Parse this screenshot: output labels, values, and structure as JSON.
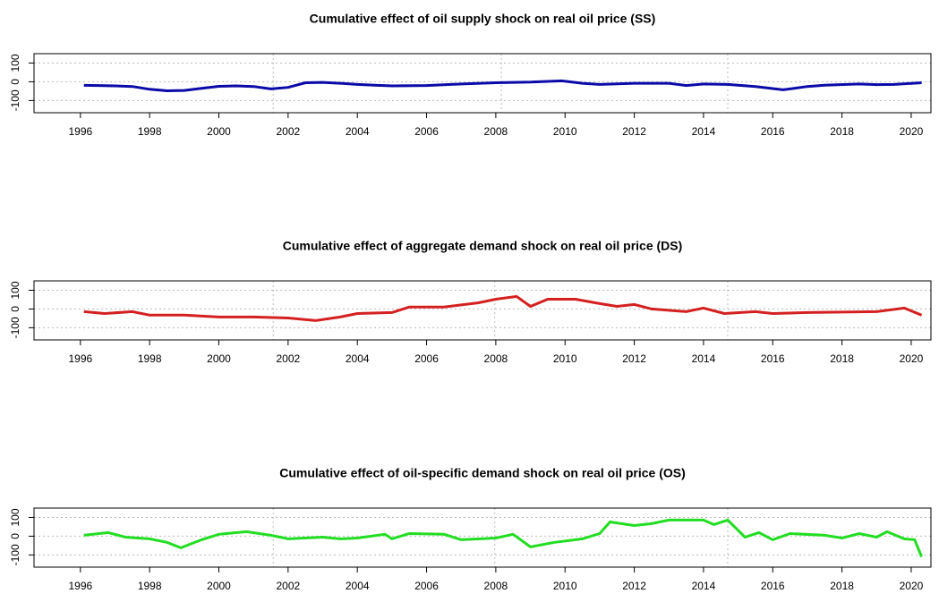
{
  "chart_data": [
    {
      "type": "line",
      "title": "Cumulative effect of oil supply shock on real oil price (SS)",
      "xlim": [
        1994.66,
        2020.57
      ],
      "xticks": [
        1996,
        1998,
        2000,
        2002,
        2004,
        2006,
        2008,
        2010,
        2012,
        2014,
        2016,
        2018,
        2020
      ],
      "ylim": [
        -165,
        150
      ],
      "yticks": [
        -100,
        0,
        100
      ],
      "grid": true,
      "vlines": [
        2001.57,
        2008.16,
        2014.7
      ],
      "x": [
        1996.1,
        1996.5,
        1997,
        1997.5,
        1998,
        1998.5,
        1999,
        1999.5,
        2000,
        2000.5,
        2001,
        2001.5,
        2002,
        2002.5,
        2003,
        2003.5,
        2004,
        2004.5,
        2005,
        2006,
        2007,
        2008,
        2009,
        2009.9,
        2010.5,
        2011,
        2012,
        2013,
        2013.5,
        2014,
        2014.7,
        2015.5,
        2016.3,
        2017,
        2017.5,
        2018.5,
        2019,
        2019.5,
        2020.3
      ],
      "series": [
        {
          "color": "#0a0aa8",
          "values": [
            -19,
            -20,
            -22,
            -25,
            -40,
            -48,
            -46,
            -35,
            -24,
            -22,
            -25,
            -38,
            -30,
            -5,
            -3,
            -8,
            -14,
            -18,
            -22,
            -20,
            -12,
            -5,
            -2,
            5,
            -8,
            -14,
            -8,
            -8,
            -20,
            -12,
            -14,
            -25,
            -43,
            -25,
            -18,
            -12,
            -15,
            -14,
            -5
          ]
        }
      ]
    },
    {
      "type": "line",
      "title": "Cumulative effect of aggregate demand shock on real oil price (DS)",
      "xlim": [
        1994.66,
        2020.57
      ],
      "xticks": [
        1996,
        1998,
        2000,
        2002,
        2004,
        2006,
        2008,
        2010,
        2012,
        2014,
        2016,
        2018,
        2020
      ],
      "ylim": [
        -165,
        150
      ],
      "yticks": [
        -100,
        0,
        100
      ],
      "grid": true,
      "vlines": [
        2001.57,
        2007.97,
        2014.7
      ],
      "x": [
        1996.1,
        1996.7,
        1997.5,
        1998,
        1999,
        2000,
        2001,
        2002,
        2002.8,
        2003.5,
        2004,
        2005,
        2005.5,
        2006.5,
        2007.5,
        2008,
        2008.6,
        2009,
        2009.5,
        2010.3,
        2011,
        2011.5,
        2012,
        2012.5,
        2013.5,
        2014,
        2014.6,
        2015.5,
        2016,
        2017,
        2019,
        2019.8,
        2020.3
      ],
      "series": [
        {
          "color": "#d42020",
          "values": [
            -14,
            -24,
            -14,
            -33,
            -33,
            -43,
            -43,
            -48,
            -62,
            -43,
            -24,
            -19,
            10,
            10,
            33,
            52,
            67,
            14,
            52,
            52,
            29,
            14,
            24,
            0,
            -14,
            5,
            -24,
            -14,
            -24,
            -19,
            -14,
            5,
            -33
          ]
        }
      ]
    },
    {
      "type": "line",
      "title": "Cumulative effect of oil-specific demand shock on real oil price (OS)",
      "xlim": [
        1994.66,
        2020.57
      ],
      "xticks": [
        1996,
        1998,
        2000,
        2002,
        2004,
        2006,
        2008,
        2010,
        2012,
        2014,
        2016,
        2018,
        2020
      ],
      "ylim": [
        -165,
        150
      ],
      "yticks": [
        -100,
        0,
        100
      ],
      "grid": true,
      "vlines": [
        2001.57,
        2007.97,
        2014.7
      ],
      "x": [
        1996.1,
        1996.8,
        1997.3,
        1998,
        1998.5,
        1998.9,
        1999.5,
        2000,
        2000.8,
        2001.5,
        2002,
        2003,
        2003.5,
        2004,
        2004.8,
        2005,
        2005.5,
        2006.5,
        2007,
        2008,
        2008.5,
        2009,
        2009.7,
        2010.5,
        2011,
        2011.3,
        2012,
        2012.5,
        2013,
        2014,
        2014.3,
        2014.7,
        2015.2,
        2015.6,
        2016,
        2016.5,
        2017.5,
        2018,
        2018.5,
        2019,
        2019.3,
        2019.8,
        2020.1,
        2020.3
      ],
      "series": [
        {
          "color": "#22dd22",
          "values": [
            5,
            19,
            -5,
            -14,
            -33,
            -62,
            -19,
            10,
            24,
            5,
            -14,
            -5,
            -14,
            -10,
            10,
            -14,
            14,
            10,
            -19,
            -10,
            10,
            -57,
            -33,
            -14,
            14,
            76,
            57,
            67,
            86,
            86,
            62,
            86,
            -5,
            19,
            -19,
            14,
            5,
            -10,
            14,
            -5,
            24,
            -14,
            -19,
            -110
          ]
        }
      ]
    }
  ]
}
